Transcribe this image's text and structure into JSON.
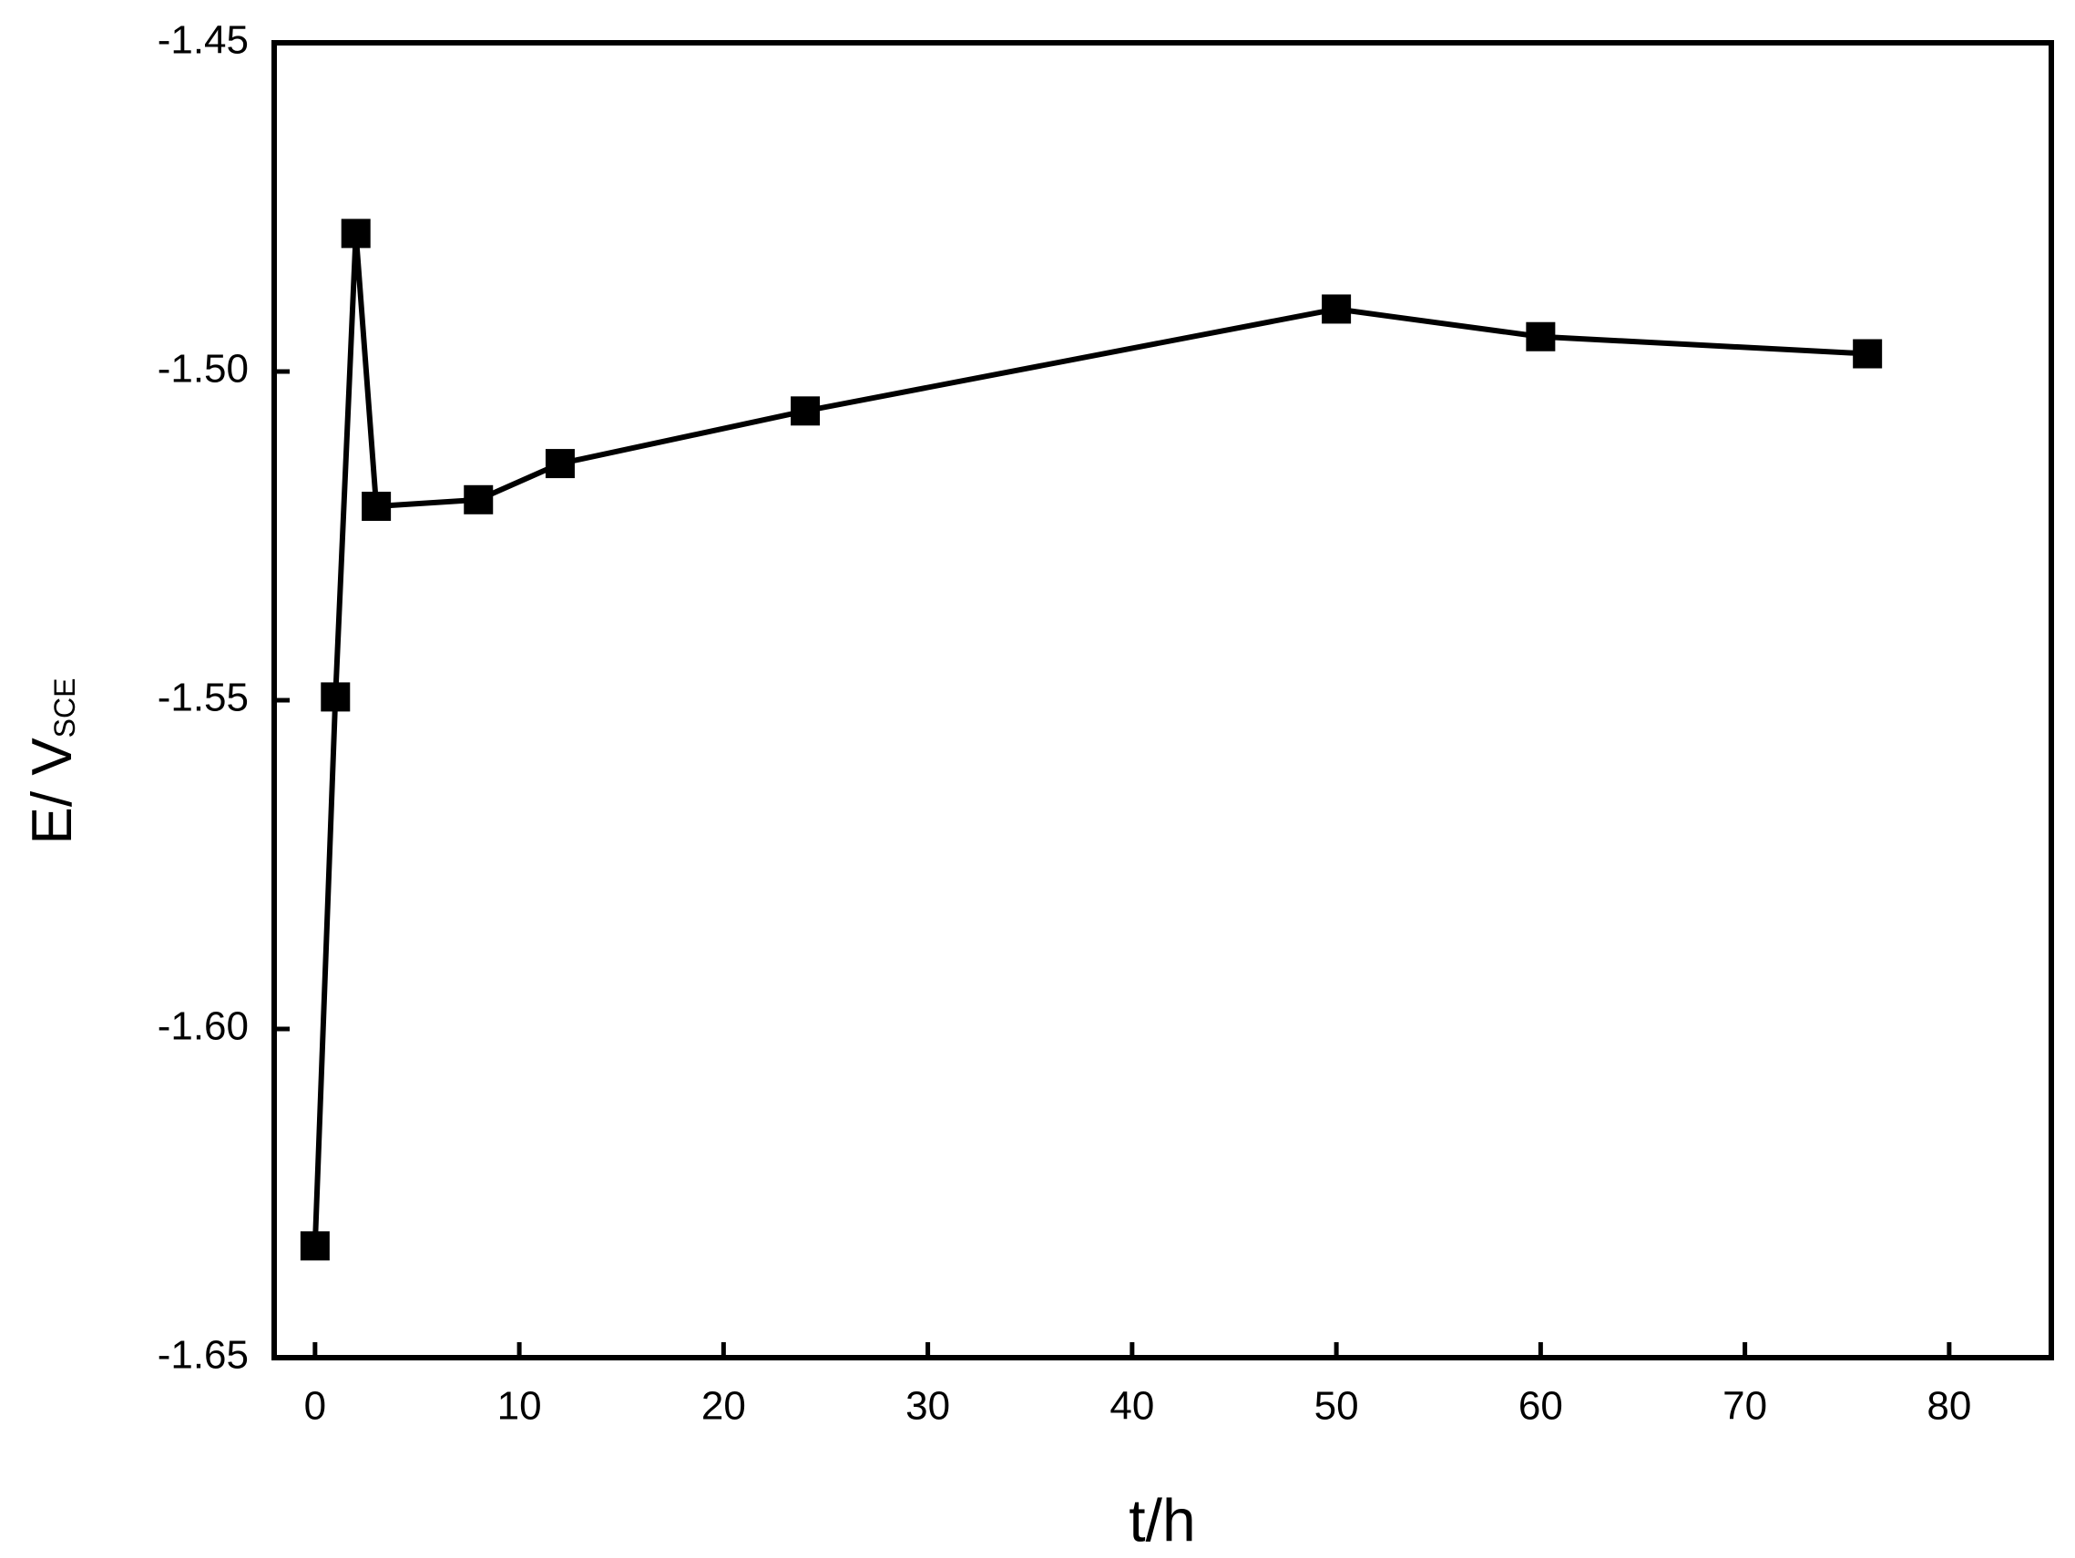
{
  "chart_data": {
    "type": "line",
    "x_label": "t/h",
    "y_label": "E/ V",
    "y_label_subscript": "SCE",
    "x": [
      0,
      1,
      2,
      3,
      8,
      12,
      24,
      50,
      60,
      76
    ],
    "series": [
      {
        "color": "#000000",
        "marker": "square",
        "values": [
          -1.633,
          -1.5495,
          -1.479,
          -1.5205,
          -1.5195,
          -1.514,
          -1.506,
          -1.4905,
          -1.4947,
          -1.4973
        ]
      }
    ],
    "xlim": [
      -2,
      85
    ],
    "xticks": [
      0,
      10,
      20,
      30,
      40,
      50,
      60,
      70,
      80
    ],
    "ylim": [
      -1.65,
      -1.45
    ],
    "yticks": [
      -1.65,
      {
        "value": -1.6,
        "label": "-1.60"
      },
      -1.55,
      {
        "value": -1.5,
        "label": "-1.50"
      },
      -1.45
    ],
    "grid": false
  }
}
